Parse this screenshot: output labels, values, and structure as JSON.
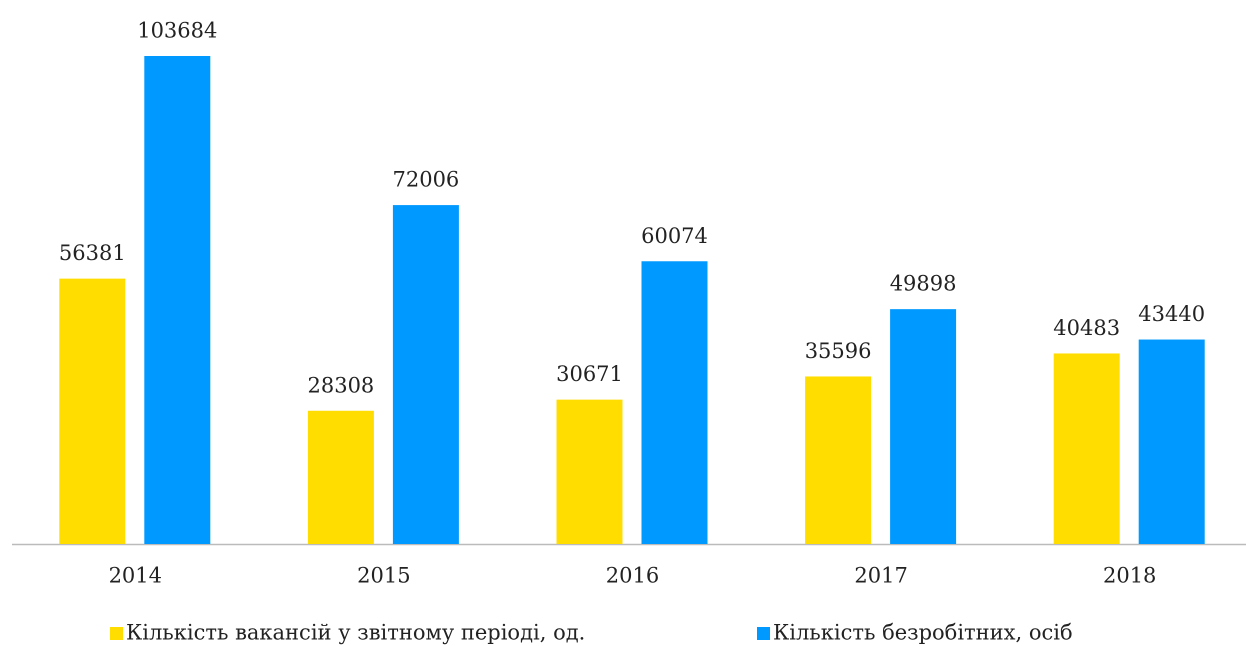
{
  "chart_data": {
    "type": "bar",
    "categories": [
      "2014",
      "2015",
      "2016",
      "2017",
      "2018"
    ],
    "series": [
      {
        "name": "Кількість вакансій у звітному періоді, од.",
        "color": "#ffdd00",
        "values": [
          56381,
          28308,
          30671,
          35596,
          40483
        ]
      },
      {
        "name": "Кількість безробітних, осіб",
        "color": "#0099ff",
        "values": [
          103684,
          72006,
          60074,
          49898,
          43440
        ]
      }
    ],
    "legend": "bottom"
  }
}
